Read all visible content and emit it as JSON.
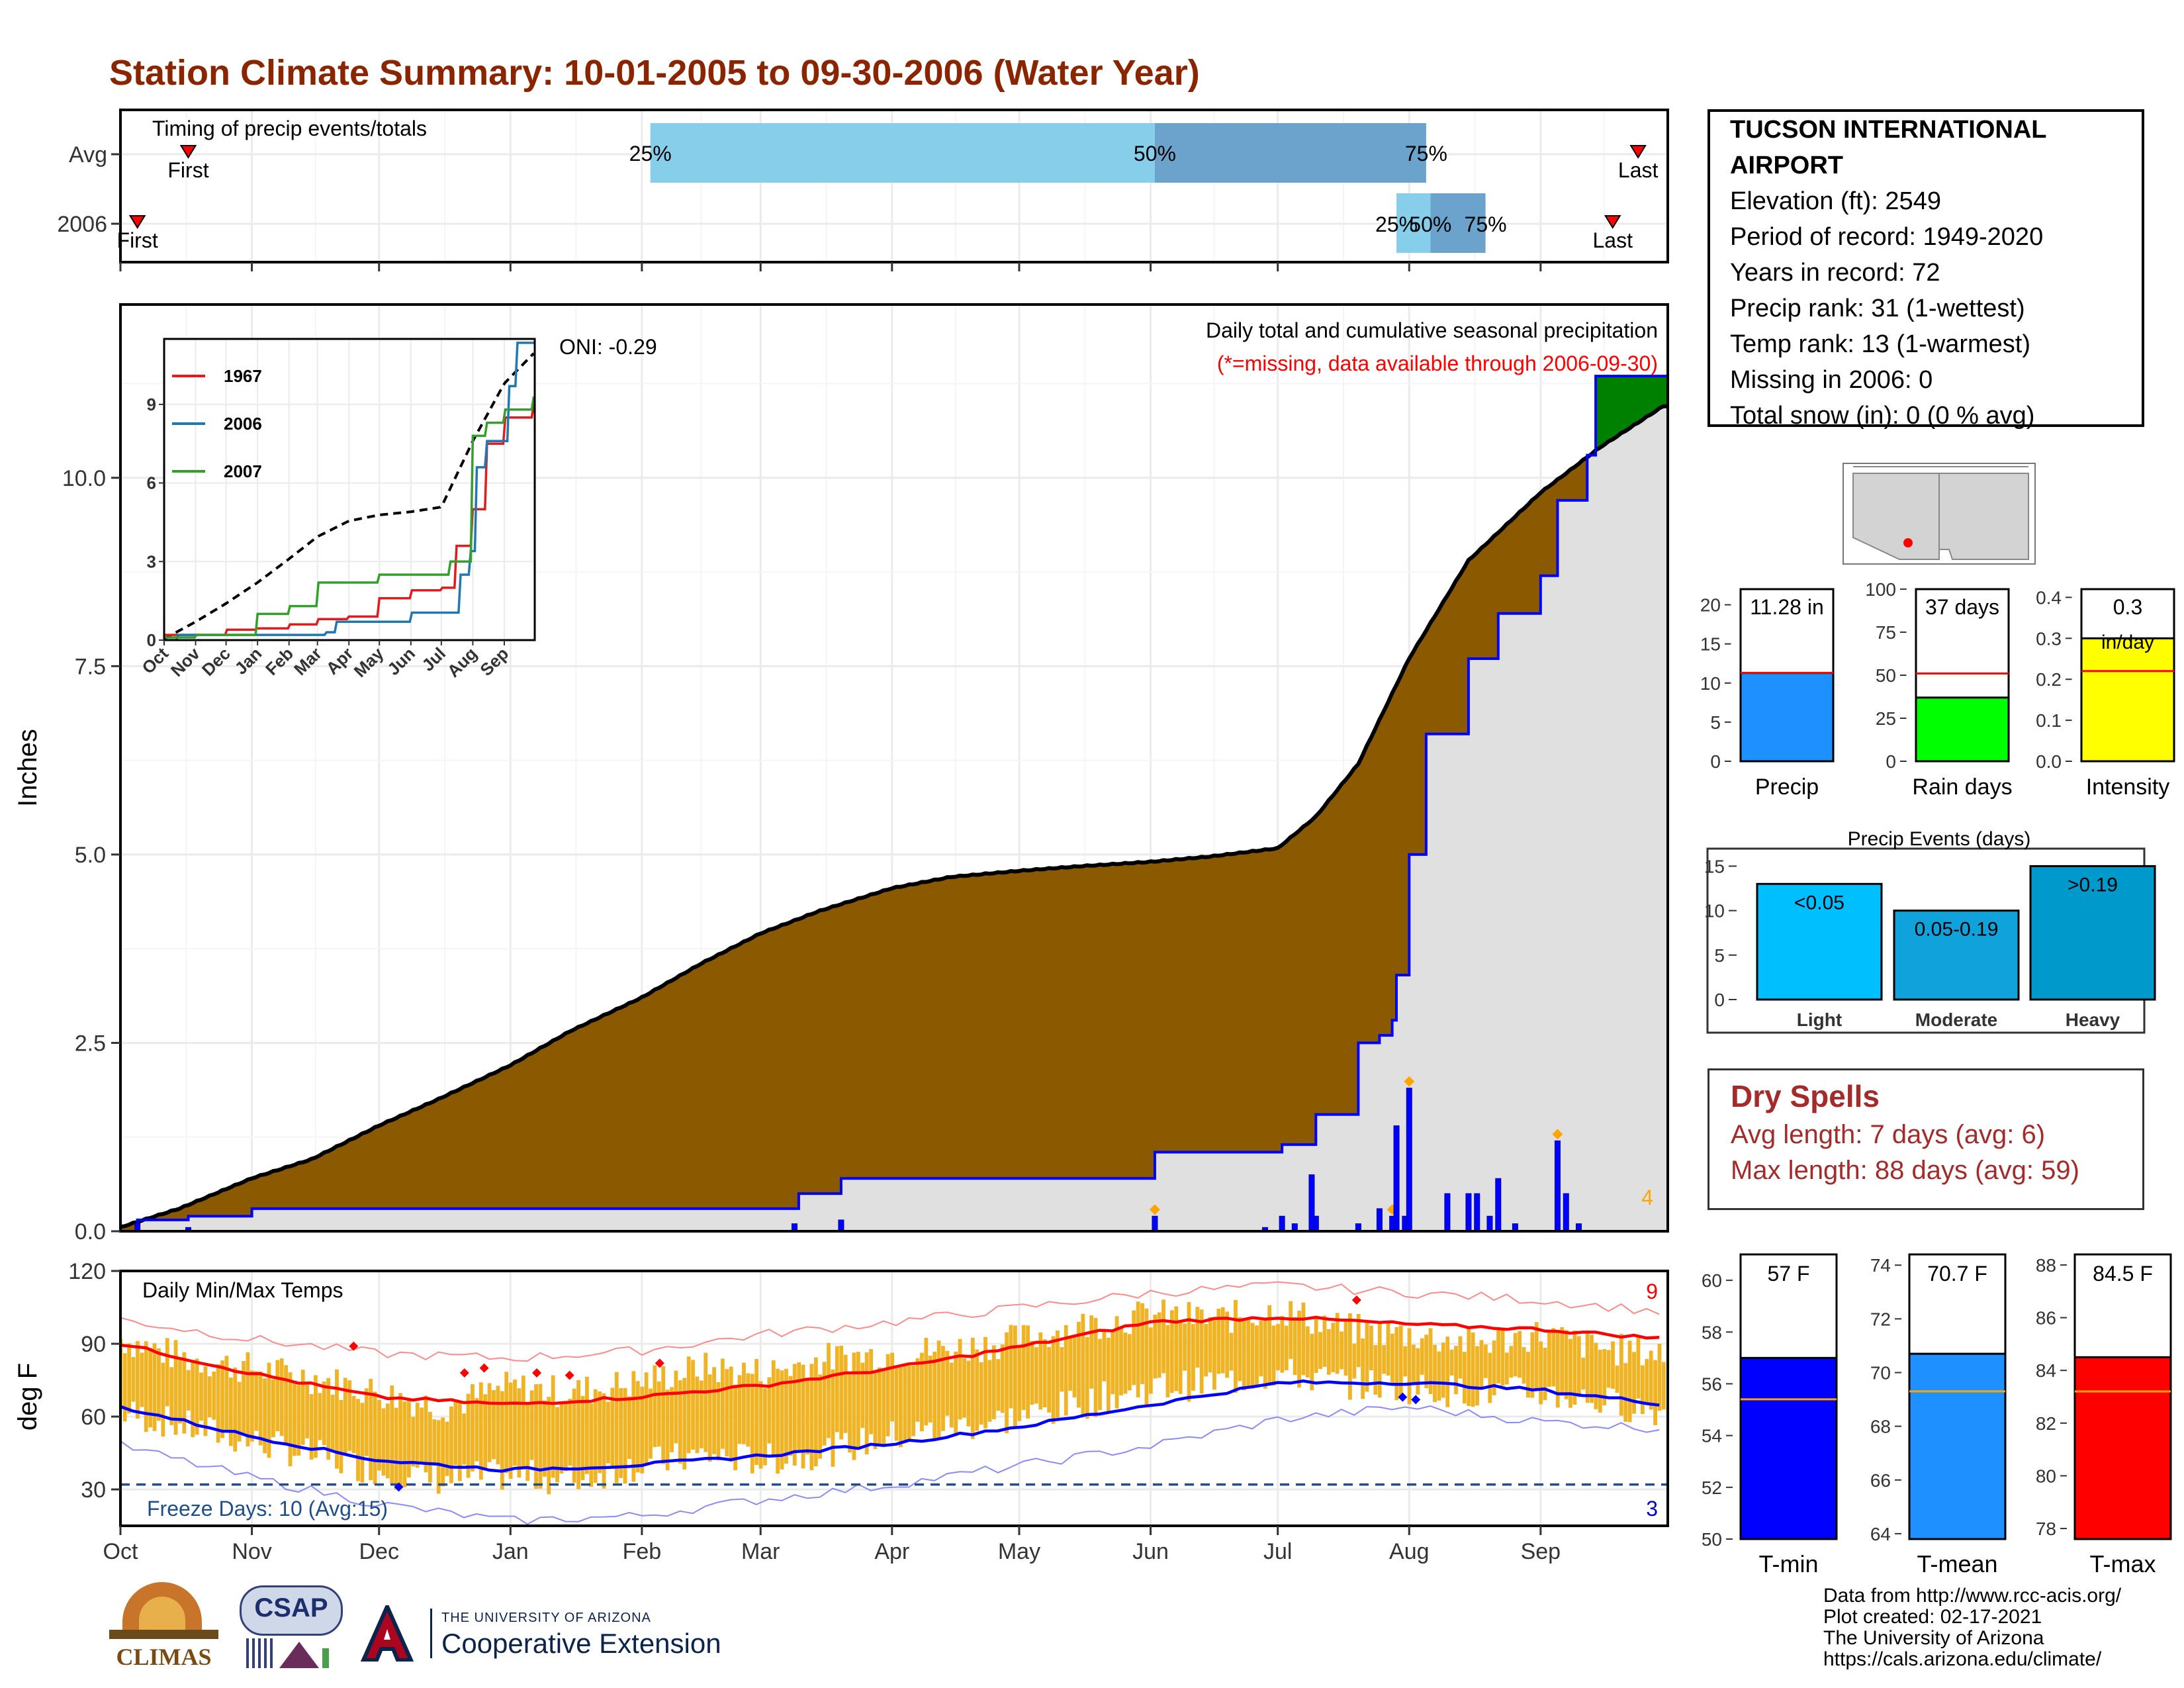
{
  "title": "Station Climate Summary: 10-01-2005 to 09-30-2006 (Water Year)",
  "timing_panel": {
    "label": "Timing of precip events/totals",
    "rows": [
      "Avg",
      "2006"
    ],
    "first_label": "First",
    "last_label": "Last",
    "pct_labels": [
      "25%",
      "50%",
      "75%"
    ],
    "avg": {
      "first": "2005-10-17",
      "p25": "2006-02-03",
      "p50": "2006-06-02",
      "p75": "2006-08-05",
      "last": "2006-09-24"
    },
    "y2006": {
      "first": "2005-10-05",
      "p25": "2006-07-29",
      "p50": "2006-08-06",
      "p75": "2006-08-19",
      "last": "2006-09-18"
    },
    "colors": {
      "light": "#87ceeb",
      "dark": "#6ba3cc"
    }
  },
  "precip_panel": {
    "ylabel": "Inches",
    "title_line1": "Daily total and cumulative seasonal precipitation",
    "title_line2": "(*=missing, data available through 2006-09-30)",
    "oni": "ONI: -0.29",
    "count_label": "4",
    "colors": {
      "deficit": "#8b5a00",
      "surplus": "#008000",
      "climo": "#e0e0e0",
      "line": "#0000ff",
      "bars": "#0000ff",
      "marker": "#ffa500"
    }
  },
  "inset": {
    "legend": [
      "1967",
      "2006",
      "2007"
    ],
    "colors": [
      "#e41a1c",
      "#1f78b4",
      "#33a02c"
    ]
  },
  "temp_panel": {
    "ylabel": "deg F",
    "label": "Daily Min/Max Temps",
    "freeze_label": "Freeze Days: 10 (Avg:15)",
    "count_high": "9",
    "count_low": "3"
  },
  "station": {
    "name": "TUCSON INTERNATIONAL AIRPORT",
    "lines": [
      "Elevation (ft): 2549",
      "Period of record: 1949-2020",
      "Years in record: 72",
      "Precip rank: 31 (1-wettest)",
      "Temp rank: 13 (1-warmest)",
      "Missing in 2006: 0",
      "Total snow (in): 0 (0 % avg)"
    ]
  },
  "mini_bars": {
    "precip": {
      "label": "Precip",
      "value": 11.28,
      "avg": 11.3,
      "text": "11.28 in",
      "ylim": [
        0,
        22
      ],
      "ticks": [
        0,
        5,
        10,
        15,
        20
      ],
      "color": "#1e90ff"
    },
    "rain_days": {
      "label": "Rain days",
      "value": 37,
      "avg": 51,
      "text": "37 days",
      "ylim": [
        0,
        100
      ],
      "ticks": [
        0,
        25,
        50,
        75,
        100
      ],
      "color": "#00ff00"
    },
    "intensity": {
      "label": "Intensity",
      "value": 0.3,
      "avg": 0.22,
      "text": "0.3",
      "subtext": "in/day",
      "ylim": [
        0,
        0.42
      ],
      "ticks": [
        "0.0",
        "0.1",
        "0.2",
        "0.3",
        "0.4"
      ],
      "color": "#ffff00"
    }
  },
  "events": {
    "title": "Precip Events (days)",
    "categories": [
      "Light",
      "Moderate",
      "Heavy"
    ],
    "labels": [
      "<0.05",
      "0.05-0.19",
      ">0.19"
    ],
    "values": [
      13,
      10,
      15
    ],
    "ticks": [
      0,
      5,
      10,
      15
    ],
    "colors": [
      "#00bfff",
      "#0fa2db",
      "#0099cc"
    ]
  },
  "dry_spells": {
    "title": "Dry Spells",
    "avg_line": "Avg length: 7 days (avg: 6)",
    "max_line": "Max length: 88 days (avg: 59)"
  },
  "temp_bars": [
    {
      "label": "T-min",
      "value": 57,
      "avg": 55.4,
      "text": "57 F",
      "ylim": [
        50,
        61
      ],
      "ticks": [
        50,
        52,
        54,
        56,
        58,
        60
      ],
      "color": "#0000ff"
    },
    {
      "label": "T-mean",
      "value": 70.7,
      "avg": 69.3,
      "text": "70.7 F",
      "ylim": [
        63.8,
        74.4
      ],
      "ticks": [
        64,
        66,
        68,
        70,
        72,
        74
      ],
      "color": "#1e90ff"
    },
    {
      "label": "T-max",
      "value": 84.5,
      "avg": 83.2,
      "text": "84.5 F",
      "ylim": [
        77.6,
        88.4
      ],
      "ticks": [
        78,
        80,
        82,
        84,
        86,
        88
      ],
      "color": "#ff0000"
    }
  ],
  "footer": [
    "Data from http://www.rcc-acis.org/",
    "Plot created: 02-17-2021",
    "The University of Arizona",
    "https://cals.arizona.edu/climate/"
  ],
  "logos": {
    "climas": "CLIMAS",
    "csap": "CSAP",
    "ua_line1": "THE UNIVERSITY OF ARIZONA",
    "ua_line2": "Cooperative Extension"
  },
  "chart_data": [
    {
      "type": "area",
      "title": "Daily total and cumulative seasonal precipitation",
      "ylabel": "Inches",
      "ylim": [
        0,
        12.3
      ],
      "yticks": [
        "0.0",
        "2.5",
        "5.0",
        "7.5",
        "10.0"
      ],
      "x_ticks": [
        "Oct",
        "Nov",
        "Dec",
        "Jan",
        "Feb",
        "Mar",
        "Apr",
        "May",
        "Jun",
        "Jul",
        "Aug",
        "Sep"
      ],
      "grid": true,
      "series": [
        {
          "name": "climatology",
          "x": [
            "2005-10-01",
            "2005-10-15",
            "2005-11-01",
            "2005-11-15",
            "2005-12-01",
            "2005-12-15",
            "2006-01-01",
            "2006-01-15",
            "2006-02-01",
            "2006-02-15",
            "2006-03-01",
            "2006-03-15",
            "2006-04-01",
            "2006-04-15",
            "2006-05-01",
            "2006-05-15",
            "2006-06-01",
            "2006-06-15",
            "2006-07-01",
            "2006-07-10",
            "2006-07-20",
            "2006-08-01",
            "2006-08-15",
            "2006-09-01",
            "2006-09-15",
            "2006-09-30"
          ],
          "values": [
            0.05,
            0.3,
            0.7,
            0.95,
            1.4,
            1.75,
            2.2,
            2.65,
            3.1,
            3.55,
            3.95,
            4.25,
            4.55,
            4.7,
            4.78,
            4.84,
            4.9,
            4.97,
            5.08,
            5.5,
            6.2,
            7.6,
            8.9,
            9.8,
            10.4,
            10.95
          ]
        },
        {
          "name": "2006",
          "x": [
            "2005-10-01",
            "2005-10-05",
            "2005-10-17",
            "2005-11-01",
            "2006-03-09",
            "2006-03-10",
            "2006-03-20",
            "2006-06-02",
            "2006-07-02",
            "2006-07-10",
            "2006-07-20",
            "2006-07-25",
            "2006-07-28",
            "2006-07-29",
            "2006-08-01",
            "2006-08-05",
            "2006-08-15",
            "2006-08-22",
            "2006-09-01",
            "2006-09-05",
            "2006-09-12",
            "2006-09-14",
            "2006-09-30"
          ],
          "values": [
            0,
            0.15,
            0.2,
            0.3,
            0.3,
            0.5,
            0.7,
            1.05,
            1.15,
            1.55,
            2.5,
            2.6,
            2.8,
            3.4,
            5.0,
            6.6,
            7.6,
            8.2,
            8.7,
            9.7,
            10.3,
            11.35,
            11.35
          ]
        }
      ],
      "daily_bars": {
        "x": [
          "2005-10-05",
          "2005-10-17",
          "2006-03-09",
          "2006-03-20",
          "2006-06-02",
          "2006-06-28",
          "2006-07-02",
          "2006-07-05",
          "2006-07-09",
          "2006-07-10",
          "2006-07-20",
          "2006-07-25",
          "2006-07-28",
          "2006-07-29",
          "2006-07-31",
          "2006-08-01",
          "2006-08-10",
          "2006-08-15",
          "2006-08-17",
          "2006-08-20",
          "2006-08-22",
          "2006-08-26",
          "2006-09-05",
          "2006-09-07",
          "2006-09-10"
        ],
        "values": [
          0.1,
          0.05,
          0.1,
          0.15,
          0.2,
          0.05,
          0.2,
          0.1,
          0.75,
          0.2,
          0.1,
          0.3,
          0.2,
          1.4,
          0.2,
          1.9,
          0.5,
          0.5,
          0.5,
          0.2,
          0.7,
          0.1,
          1.2,
          0.5,
          0.1
        ]
      }
    },
    {
      "type": "line",
      "x_ticks": [
        "Oct",
        "Nov",
        "Dec",
        "Jan",
        "Feb",
        "Mar",
        "Apr",
        "May",
        "Jun",
        "Jul",
        "Aug",
        "Sep"
      ],
      "yticks": [
        0,
        3,
        6,
        9
      ],
      "ylim": [
        0,
        11.5
      ],
      "series": [
        {
          "name": "climatology",
          "x": [
            "2005-10-01",
            "2005-11-01",
            "2005-12-01",
            "2006-01-01",
            "2006-02-01",
            "2006-03-01",
            "2006-04-01",
            "2006-05-01",
            "2006-06-01",
            "2006-07-01",
            "2006-08-01",
            "2006-09-01",
            "2006-09-30"
          ],
          "values": [
            0.05,
            0.7,
            1.4,
            2.2,
            3.1,
            3.95,
            4.55,
            4.78,
            4.9,
            5.08,
            7.6,
            9.8,
            10.95
          ]
        },
        {
          "name": "1967",
          "x": [
            "2005-10-01",
            "2005-12-01",
            "2006-01-01",
            "2006-02-01",
            "2006-03-01",
            "2006-04-01",
            "2006-05-01",
            "2006-06-01",
            "2006-07-01",
            "2006-07-15",
            "2006-08-01",
            "2006-08-15",
            "2006-09-01",
            "2006-09-30"
          ],
          "values": [
            0.2,
            0.4,
            0.45,
            0.6,
            0.8,
            0.9,
            1.6,
            1.9,
            2.0,
            3.6,
            5.0,
            7.5,
            8.5,
            9.0
          ]
        },
        {
          "name": "2006",
          "x": [
            "2005-10-01",
            "2005-10-15",
            "2006-03-09",
            "2006-03-20",
            "2006-06-02",
            "2006-07-20",
            "2006-07-29",
            "2006-08-05",
            "2006-08-15",
            "2006-09-05",
            "2006-09-14",
            "2006-09-30"
          ],
          "values": [
            0,
            0.2,
            0.3,
            0.7,
            1.05,
            2.5,
            3.4,
            6.6,
            7.6,
            9.7,
            11.35,
            11.35
          ]
        },
        {
          "name": "2007",
          "x": [
            "2005-10-01",
            "2005-11-01",
            "2006-01-01",
            "2006-02-01",
            "2006-03-01",
            "2006-05-01",
            "2006-07-01",
            "2006-07-10",
            "2006-08-01",
            "2006-08-15",
            "2006-09-01",
            "2006-09-30"
          ],
          "values": [
            0.1,
            0.2,
            1.0,
            1.3,
            2.2,
            2.5,
            2.5,
            3.0,
            7.8,
            8.3,
            8.8,
            9.3
          ]
        }
      ]
    },
    {
      "type": "line",
      "title": "Daily Min/Max Temps",
      "ylabel": "deg F",
      "ylim": [
        15,
        120
      ],
      "yticks": [
        30,
        60,
        90,
        120
      ],
      "x_ticks": [
        "Oct",
        "Nov",
        "Dec",
        "Jan",
        "Feb",
        "Mar",
        "Apr",
        "May",
        "Jun",
        "Jul",
        "Aug",
        "Sep"
      ],
      "freeze_line": 32,
      "series": [
        {
          "name": "avg_max",
          "x_month_index": [
            0,
            1,
            2,
            3,
            4,
            5,
            6,
            7,
            8,
            9,
            10,
            11,
            12
          ],
          "values": [
            90,
            78,
            68,
            65,
            68,
            73,
            80,
            89,
            99,
            101,
            98,
            96,
            92
          ]
        },
        {
          "name": "avg_min",
          "x_month_index": [
            0,
            1,
            2,
            3,
            4,
            5,
            6,
            7,
            8,
            9,
            10,
            11,
            12
          ],
          "values": [
            64,
            52,
            42,
            38,
            40,
            44,
            49,
            56,
            65,
            74,
            74,
            71,
            65
          ]
        },
        {
          "name": "record_high",
          "x_month_index": [
            0,
            1,
            2,
            3,
            4,
            5,
            6,
            7,
            8,
            9,
            10,
            11,
            12
          ],
          "values": [
            100,
            92,
            86,
            84,
            87,
            94,
            99,
            105,
            111,
            114,
            111,
            108,
            103
          ]
        },
        {
          "name": "record_low",
          "x_month_index": [
            0,
            1,
            2,
            3,
            4,
            5,
            6,
            7,
            8,
            9,
            10,
            11,
            12
          ],
          "values": [
            48,
            35,
            24,
            17,
            19,
            26,
            32,
            40,
            48,
            59,
            64,
            58,
            55
          ]
        },
        {
          "name": "daily_max_2006",
          "x_month_index": [
            0,
            0.5,
            1,
            1.5,
            2,
            2.5,
            3,
            3.5,
            4,
            4.5,
            5,
            5.5,
            6,
            6.5,
            7,
            7.5,
            8,
            8.5,
            9,
            9.5,
            10,
            10.5,
            11,
            11.5,
            12
          ],
          "values": [
            92,
            84,
            80,
            76,
            70,
            64,
            72,
            70,
            74,
            80,
            78,
            84,
            86,
            88,
            92,
            98,
            102,
            100,
            104,
            96,
            94,
            90,
            94,
            88,
            86
          ]
        },
        {
          "name": "daily_min_2006",
          "x_month_index": [
            0,
            0.5,
            1,
            1.5,
            2,
            2.5,
            3,
            3.5,
            4,
            4.5,
            5,
            5.5,
            6,
            6.5,
            7,
            7.5,
            8,
            8.5,
            9,
            9.5,
            10,
            10.5,
            11,
            11.5,
            12
          ],
          "values": [
            62,
            56,
            50,
            44,
            38,
            34,
            36,
            34,
            40,
            44,
            42,
            46,
            52,
            56,
            60,
            66,
            72,
            74,
            78,
            74,
            72,
            70,
            70,
            66,
            62
          ]
        }
      ]
    },
    {
      "type": "bar",
      "categories": [
        "Precip",
        "Rain days",
        "Intensity"
      ],
      "values": [
        11.28,
        37,
        0.3
      ],
      "series": [
        {
          "name": "",
          "values": [
            11.28,
            37,
            0.3
          ]
        }
      ]
    },
    {
      "type": "bar",
      "title": "Precip Events (days)",
      "categories": [
        "Light",
        "Moderate",
        "Heavy"
      ],
      "values": [
        13,
        10,
        15
      ]
    },
    {
      "type": "bar",
      "categories": [
        "T-min",
        "T-mean",
        "T-max"
      ],
      "values": [
        57,
        70.7,
        84.5
      ]
    }
  ]
}
